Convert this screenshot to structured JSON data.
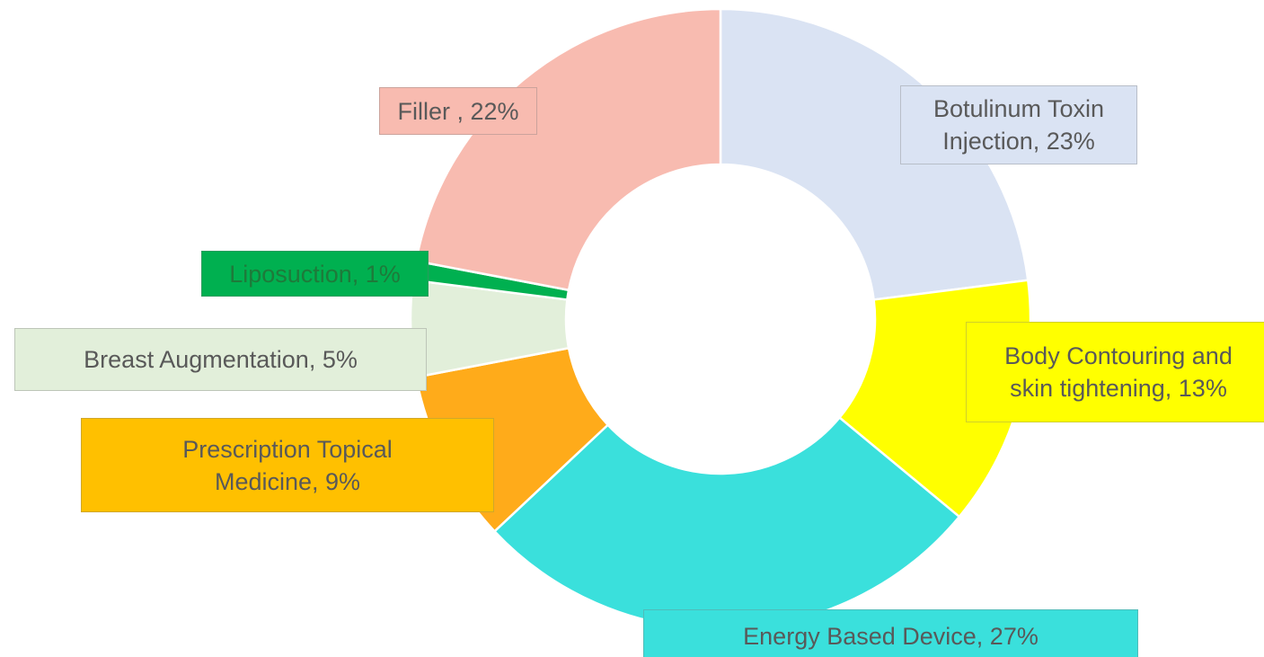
{
  "chart_data": {
    "type": "donut",
    "values": [
      23,
      13,
      27,
      9,
      5,
      1,
      22
    ],
    "value_labels": [
      "Botulinum Toxin\nInjection, 23%",
      "Body Contouring and\nskin tightening, 13%",
      "Energy Based Device, 27%",
      "Prescription Topical\nMedicine, 9%",
      "Breast Augmentation, 5%",
      "Liposuction, 1%",
      "Filler , 22%"
    ],
    "colors": [
      "#dae3f3",
      "#ffff00",
      "#3ae0dc",
      "#ffab1a",
      "#e2efda",
      "#00b050",
      "#f8bbb0"
    ],
    "label_colors": [
      "#dae3f3",
      "#ffff00",
      "#3ae0dc",
      "#ffc000",
      "#e2efda",
      "#00b050",
      "#f8bbb0"
    ]
  }
}
